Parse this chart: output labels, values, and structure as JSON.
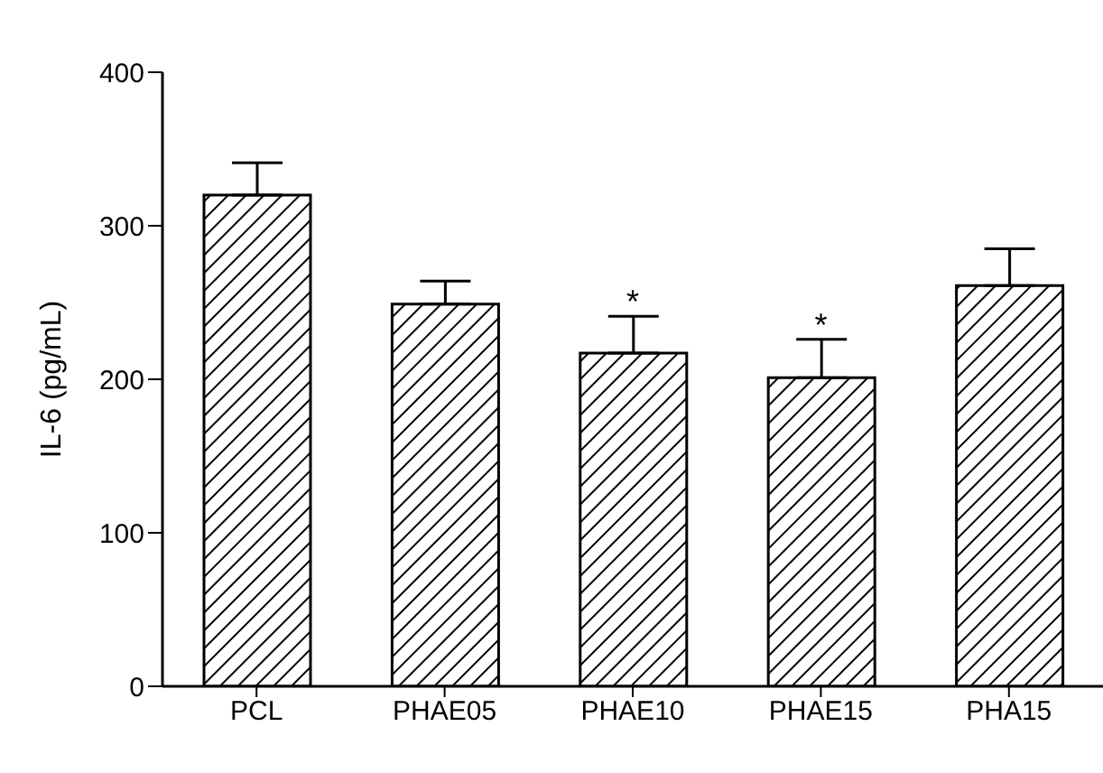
{
  "chart_data": {
    "type": "bar",
    "ylabel": "IL-6 (pg/mL)",
    "categories": [
      "PCL",
      "PHAE05",
      "PHAE10",
      "PHAE15",
      "PHA15"
    ],
    "values": [
      320,
      249,
      217,
      201,
      261
    ],
    "errors": [
      [
        320,
        341
      ],
      [
        249,
        264
      ],
      [
        217,
        241
      ],
      [
        201,
        226
      ],
      [
        261,
        285
      ]
    ],
    "color": "#000000",
    "ylim": [
      0,
      400
    ],
    "yticks": [
      0,
      100,
      200,
      300,
      400
    ],
    "grid": false,
    "annotations": [
      {
        "text": "*",
        "x": "PHAE10",
        "y": 241
      },
      {
        "text": "*",
        "x": "PHAE15",
        "y": 226
      }
    ]
  }
}
